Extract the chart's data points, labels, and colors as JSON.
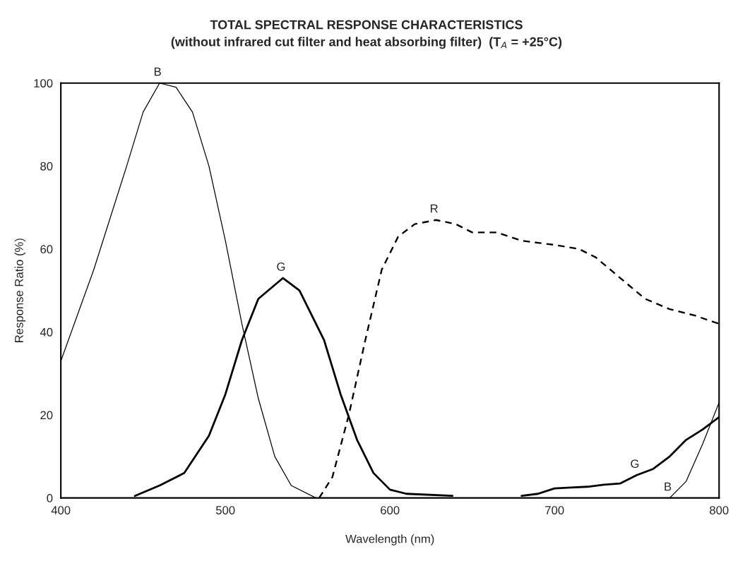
{
  "chart_data": {
    "type": "line",
    "title": "TOTAL SPECTRAL RESPONSE CHARACTERISTICS",
    "subtitle": "(without infrared cut filter and heat absorbing filter)  (T$_{A}$ = +25°C)",
    "xlabel": "Wavelength (nm)",
    "ylabel": "Response Ratio (%)",
    "series": [
      {
        "color": "#000000",
        "line_style": "solid",
        "x": [
          400,
          420,
          440,
          450,
          460,
          470,
          480,
          490,
          500,
          510,
          520,
          530,
          540,
          555,
          600,
          770,
          780,
          790,
          800
        ],
        "values": [
          33,
          55,
          80,
          93,
          100,
          99,
          93,
          80,
          62,
          42,
          24,
          10,
          3,
          0,
          null,
          0,
          4,
          13,
          23
        ]
      },
      {
        "color": "#000000",
        "line_style": "solid",
        "x": [
          445,
          460,
          475,
          490,
          500,
          510,
          520,
          535,
          545,
          560,
          570,
          580,
          590,
          600,
          610,
          638,
          660,
          680,
          690,
          700,
          710,
          720,
          730,
          740,
          750,
          760,
          770,
          780,
          790,
          800
        ],
        "values": [
          0.5,
          3,
          6,
          15,
          25,
          38,
          48,
          53,
          50,
          38,
          25,
          14,
          6,
          2,
          1,
          0.5,
          null,
          0.5,
          1,
          2.3,
          2.5,
          2.7,
          3.2,
          3.5,
          5.5,
          7,
          10,
          14,
          16.5,
          19.5
        ]
      },
      {
        "color": "#000000",
        "line_style": "dashed",
        "x": [
          557,
          565,
          575,
          585,
          595,
          605,
          615,
          628,
          640,
          650,
          665,
          680,
          700,
          715,
          725,
          740,
          755,
          770,
          785,
          800
        ],
        "values": [
          0,
          5,
          20,
          38,
          55,
          63,
          66,
          67,
          66,
          64,
          64,
          62,
          61,
          60,
          58,
          53,
          48,
          45.5,
          44,
          42
        ]
      }
    ],
    "annotations": [
      {
        "text": "B",
        "x": 460,
        "y": 100
      },
      {
        "text": "G",
        "x": 535,
        "y": 53
      },
      {
        "text": "R",
        "x": 628,
        "y": 67
      },
      {
        "text": "G",
        "x": 750,
        "y": 5.5
      },
      {
        "text": "B",
        "x": 770,
        "y": 0
      }
    ],
    "xlim": [
      400,
      800
    ],
    "ylim": [
      0,
      100
    ],
    "xticks": [
      400,
      500,
      600,
      700,
      800
    ],
    "yticks": [
      0,
      20,
      40,
      60,
      80,
      100
    ],
    "grid": false
  }
}
